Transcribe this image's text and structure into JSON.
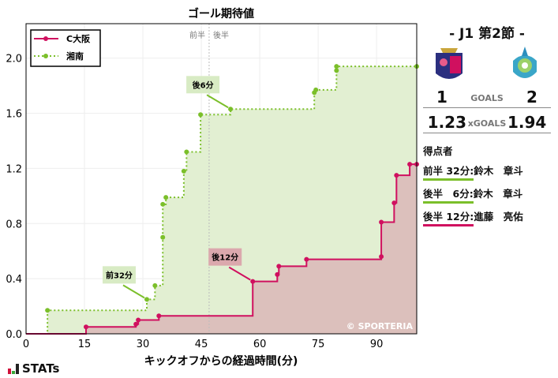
{
  "chart_data": {
    "type": "line",
    "title": "ゴール期待値",
    "xlabel": "キックオフからの経過時間(分)",
    "ylabel": "",
    "xlim": [
      0,
      100.3
    ],
    "ylim": [
      0,
      2.25
    ],
    "xticks": [
      0,
      15,
      30,
      45,
      60,
      75,
      90
    ],
    "yticks": [
      0.0,
      0.4,
      0.8,
      1.2,
      1.6,
      2.0
    ],
    "grid": true,
    "legend_placement": "top-left",
    "halftime": {
      "x": 47,
      "labels": [
        "前半",
        "後半"
      ]
    },
    "series": [
      {
        "name": "C大阪",
        "color": "#d0105f",
        "fill": "#dcc0bc",
        "style": "solid",
        "x": [
          0,
          15.4,
          28.2,
          28.8,
          34.1,
          58.2,
          64.5,
          64.9,
          72,
          91.2,
          91.2,
          94.5,
          95.1,
          98.5,
          100.3
        ],
        "y": [
          0,
          0.05,
          0.07,
          0.1,
          0.13,
          0.38,
          0.43,
          0.49,
          0.54,
          0.56,
          0.81,
          0.95,
          1.15,
          1.23,
          1.23
        ]
      },
      {
        "name": "湘南",
        "color": "#7bbf2a",
        "fill": "#e2efd2",
        "style": "dotted",
        "x": [
          0,
          5.5,
          31,
          33.1,
          35.1,
          35.1,
          35.9,
          40.5,
          41.2,
          44.8,
          52.5,
          74,
          74.4,
          79.7,
          79.7,
          100.3
        ],
        "y": [
          0,
          0.17,
          0.25,
          0.35,
          0.7,
          0.94,
          0.99,
          1.18,
          1.32,
          1.59,
          1.63,
          1.75,
          1.77,
          1.91,
          1.94,
          1.94
        ]
      }
    ],
    "annotations": [
      {
        "text": "前32分",
        "x": 31,
        "y": 0.25,
        "color": "#d8ebc4",
        "series": 1
      },
      {
        "text": "後6分",
        "x": 52.5,
        "y": 1.63,
        "color": "#d8ebc4",
        "series": 1
      },
      {
        "text": "後12分",
        "x": 58.2,
        "y": 0.38,
        "color": "#dba8ad",
        "series": 0
      }
    ],
    "watermark": "© SPORTERIA"
  },
  "side": {
    "match": "-  J1 第2節  -",
    "home_goals": "1",
    "goals_label": "GOALS",
    "away_goals": "2",
    "home_xg": "1.23",
    "xg_label": "xGOALS",
    "away_xg": "1.94",
    "scorers_title": "得点者",
    "scorers": [
      {
        "time": "前半 32分:",
        "name": "鈴木　章斗",
        "color": "#7bbf2a"
      },
      {
        "time": "後半　6分:",
        "name": "鈴木　章斗",
        "color": "#7bbf2a"
      },
      {
        "time": "後半 12分:",
        "name": "進藤　亮佑",
        "color": "#d0105f"
      }
    ]
  },
  "brand": "STATs"
}
